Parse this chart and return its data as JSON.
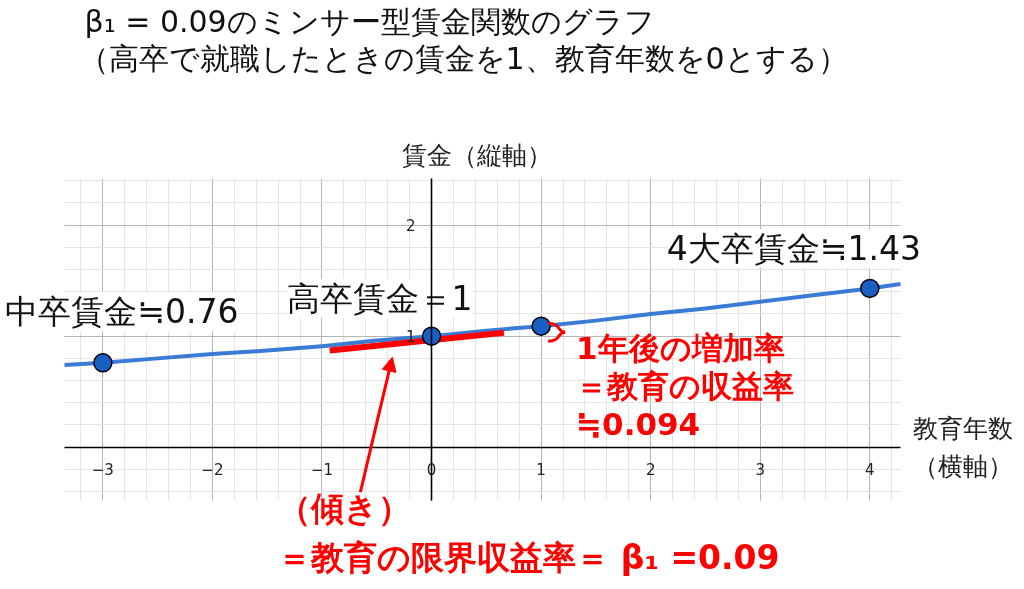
{
  "chart_data": {
    "type": "line",
    "title": "β₁ = 0.09のミンサー型賃金関数のグラフ",
    "subtitle": "（高卒で就職したときの賃金を1、教育年数を0とする）",
    "xlabel": "教育年数（横軸）",
    "ylabel": "賃金（縦軸）",
    "xlim": [
      -3.35,
      4.28
    ],
    "ylim": [
      -0.48,
      2.42
    ],
    "xticks": [
      -3,
      -2,
      -1,
      0,
      1,
      2,
      3,
      4
    ],
    "yticks": [
      1,
      2
    ],
    "grid": true,
    "series": [
      {
        "color": "#3a7bd5",
        "x": [
          -3.35,
          -3,
          -2.5,
          -2,
          -1.5,
          -1,
          -0.5,
          0,
          0.5,
          1,
          1.5,
          2,
          2.5,
          3,
          3.5,
          4,
          4.28
        ],
        "values": [
          0.74,
          0.76,
          0.8,
          0.84,
          0.87,
          0.91,
          0.96,
          1.0,
          1.05,
          1.09,
          1.14,
          1.2,
          1.25,
          1.31,
          1.37,
          1.43,
          1.47
        ]
      },
      {
        "color": "#ff0000",
        "x": [
          -0.93,
          0.66
        ],
        "values": [
          0.87,
          1.03
        ]
      },
      {
        "type": "scatter",
        "color": "#1a5fc4",
        "marker": "circle",
        "x": [
          -3,
          0,
          1,
          4
        ],
        "values": [
          0.76,
          1,
          1.09,
          1.43
        ]
      }
    ],
    "annotations": [
      {
        "text": "中卒賃金≒0.76",
        "x": -3,
        "y": 0.76
      },
      {
        "text": "高卒賃金＝1",
        "x": 0,
        "y": 1
      },
      {
        "text": "4大卒賃金≒1.43",
        "x": 4,
        "y": 1.43
      },
      {
        "text": "1年後の増加率＝教育の収益率≒0.094",
        "x": 1,
        "y": 1.09
      },
      "（傾き）＝教育の限界収益率＝ β₁ =0.09"
    ]
  }
}
